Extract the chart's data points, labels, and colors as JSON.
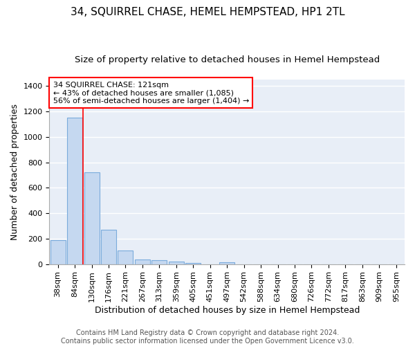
{
  "title": "34, SQUIRREL CHASE, HEMEL HEMPSTEAD, HP1 2TL",
  "subtitle": "Size of property relative to detached houses in Hemel Hempstead",
  "xlabel": "Distribution of detached houses by size in Hemel Hempstead",
  "ylabel": "Number of detached properties",
  "categories": [
    "38sqm",
    "84sqm",
    "130sqm",
    "176sqm",
    "221sqm",
    "267sqm",
    "313sqm",
    "359sqm",
    "405sqm",
    "451sqm",
    "497sqm",
    "542sqm",
    "588sqm",
    "634sqm",
    "680sqm",
    "726sqm",
    "772sqm",
    "817sqm",
    "863sqm",
    "909sqm",
    "955sqm"
  ],
  "values": [
    190,
    1150,
    720,
    270,
    108,
    35,
    30,
    18,
    10,
    0,
    13,
    0,
    0,
    0,
    0,
    0,
    0,
    0,
    0,
    0,
    0
  ],
  "bar_color": "#c5d8f0",
  "bar_edge_color": "#7aabdc",
  "red_line_at_index": 1.5,
  "property_size": 121,
  "annotation_text_line1": "34 SQUIRREL CHASE: 121sqm",
  "annotation_text_line2": "← 43% of detached houses are smaller (1,085)",
  "annotation_text_line3": "56% of semi-detached houses are larger (1,404) →",
  "ylim": [
    0,
    1450
  ],
  "yticks": [
    0,
    200,
    400,
    600,
    800,
    1000,
    1200,
    1400
  ],
  "footer_line1": "Contains HM Land Registry data © Crown copyright and database right 2024.",
  "footer_line2": "Contains public sector information licensed under the Open Government Licence v3.0.",
  "fig_bg_color": "#ffffff",
  "plot_bg_color": "#e8eef7",
  "grid_color": "#ffffff",
  "title_fontsize": 11,
  "subtitle_fontsize": 9.5,
  "axis_label_fontsize": 9,
  "tick_fontsize": 8,
  "footer_fontsize": 7
}
